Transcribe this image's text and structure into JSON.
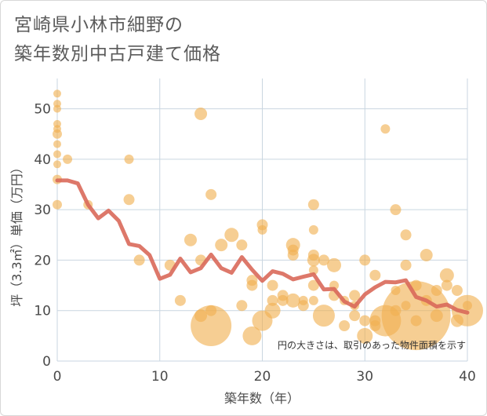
{
  "page": {
    "title_line1": "宮崎県小林市細野の",
    "title_line2": "築年数別中古戸建て価格"
  },
  "chart_data": {
    "type": "scatter",
    "title": "宮崎県小林市細野の築年数別中古戸建て価格",
    "xlabel": "築年数（年）",
    "ylabel": "坪（3.3㎡）単価（万円）",
    "xlim": [
      0,
      40
    ],
    "ylim": [
      0,
      56
    ],
    "xticks": [
      0,
      10,
      20,
      30,
      40
    ],
    "yticks": [
      0,
      10,
      20,
      30,
      40,
      50
    ],
    "grid": true,
    "annotation": "円の大きさは、取引のあった物件面積を示す",
    "colors": {
      "bubble": "#f0b050",
      "line": "#d9695a",
      "grid": "#c9d6e0"
    },
    "points": [
      {
        "x": 0,
        "y": 53,
        "s": 5
      },
      {
        "x": 0,
        "y": 51,
        "s": 5
      },
      {
        "x": 0,
        "y": 50,
        "s": 5
      },
      {
        "x": 0,
        "y": 47,
        "s": 5
      },
      {
        "x": 0,
        "y": 46,
        "s": 5
      },
      {
        "x": 0,
        "y": 45,
        "s": 6
      },
      {
        "x": 0,
        "y": 43,
        "s": 5
      },
      {
        "x": 0,
        "y": 41,
        "s": 5
      },
      {
        "x": 0,
        "y": 39,
        "s": 5
      },
      {
        "x": 0,
        "y": 36,
        "s": 6
      },
      {
        "x": 0,
        "y": 31,
        "s": 6
      },
      {
        "x": 1,
        "y": 40,
        "s": 6
      },
      {
        "x": 3,
        "y": 31,
        "s": 6
      },
      {
        "x": 7,
        "y": 40,
        "s": 6
      },
      {
        "x": 7,
        "y": 32,
        "s": 7
      },
      {
        "x": 8,
        "y": 20,
        "s": 7
      },
      {
        "x": 11,
        "y": 19,
        "s": 7
      },
      {
        "x": 12,
        "y": 12,
        "s": 7
      },
      {
        "x": 13,
        "y": 24,
        "s": 8
      },
      {
        "x": 14,
        "y": 49,
        "s": 8
      },
      {
        "x": 14,
        "y": 20,
        "s": 7
      },
      {
        "x": 14,
        "y": 9,
        "s": 8
      },
      {
        "x": 15,
        "y": 33,
        "s": 7
      },
      {
        "x": 15,
        "y": 10,
        "s": 7
      },
      {
        "x": 15,
        "y": 7,
        "s": 26
      },
      {
        "x": 16,
        "y": 23,
        "s": 8
      },
      {
        "x": 17,
        "y": 25,
        "s": 9
      },
      {
        "x": 18,
        "y": 23,
        "s": 7
      },
      {
        "x": 18,
        "y": 11,
        "s": 7
      },
      {
        "x": 19,
        "y": 16,
        "s": 7
      },
      {
        "x": 19,
        "y": 15,
        "s": 7
      },
      {
        "x": 19,
        "y": 5,
        "s": 12
      },
      {
        "x": 20,
        "y": 27,
        "s": 7
      },
      {
        "x": 20,
        "y": 26,
        "s": 6
      },
      {
        "x": 20,
        "y": 8,
        "s": 13
      },
      {
        "x": 21,
        "y": 15,
        "s": 7
      },
      {
        "x": 21,
        "y": 12,
        "s": 7
      },
      {
        "x": 21,
        "y": 10,
        "s": 10
      },
      {
        "x": 22,
        "y": 13,
        "s": 7
      },
      {
        "x": 22,
        "y": 12,
        "s": 7
      },
      {
        "x": 23,
        "y": 23,
        "s": 9
      },
      {
        "x": 23,
        "y": 21,
        "s": 7
      },
      {
        "x": 23,
        "y": 22,
        "s": 7
      },
      {
        "x": 23,
        "y": 12,
        "s": 9
      },
      {
        "x": 24,
        "y": 11,
        "s": 7
      },
      {
        "x": 24,
        "y": 12,
        "s": 6
      },
      {
        "x": 25,
        "y": 31,
        "s": 7
      },
      {
        "x": 25,
        "y": 26,
        "s": 6
      },
      {
        "x": 25,
        "y": 21,
        "s": 7
      },
      {
        "x": 25,
        "y": 20,
        "s": 8
      },
      {
        "x": 25,
        "y": 18,
        "s": 6
      },
      {
        "x": 25,
        "y": 15,
        "s": 7
      },
      {
        "x": 25,
        "y": 12,
        "s": 6
      },
      {
        "x": 26,
        "y": 9,
        "s": 14
      },
      {
        "x": 26,
        "y": 20,
        "s": 7
      },
      {
        "x": 27,
        "y": 19,
        "s": 9
      },
      {
        "x": 27,
        "y": 15,
        "s": 6
      },
      {
        "x": 27,
        "y": 13,
        "s": 7
      },
      {
        "x": 28,
        "y": 12,
        "s": 6
      },
      {
        "x": 28,
        "y": 7,
        "s": 7
      },
      {
        "x": 29,
        "y": 13,
        "s": 7
      },
      {
        "x": 29,
        "y": 11,
        "s": 6
      },
      {
        "x": 29,
        "y": 9,
        "s": 7
      },
      {
        "x": 30,
        "y": 20,
        "s": 7
      },
      {
        "x": 30,
        "y": 8,
        "s": 7
      },
      {
        "x": 30,
        "y": 5,
        "s": 10
      },
      {
        "x": 31,
        "y": 17,
        "s": 7
      },
      {
        "x": 31,
        "y": 8,
        "s": 7
      },
      {
        "x": 31,
        "y": 7,
        "s": 7
      },
      {
        "x": 32,
        "y": 46,
        "s": 6
      },
      {
        "x": 32,
        "y": 8,
        "s": 20
      },
      {
        "x": 33,
        "y": 30,
        "s": 7
      },
      {
        "x": 33,
        "y": 14,
        "s": 6
      },
      {
        "x": 33,
        "y": 10,
        "s": 7
      },
      {
        "x": 34,
        "y": 25,
        "s": 7
      },
      {
        "x": 34,
        "y": 19,
        "s": 7
      },
      {
        "x": 34,
        "y": 11,
        "s": 6
      },
      {
        "x": 35,
        "y": 9,
        "s": 44
      },
      {
        "x": 35,
        "y": 15,
        "s": 7
      },
      {
        "x": 35,
        "y": 8,
        "s": 7
      },
      {
        "x": 36,
        "y": 21,
        "s": 8
      },
      {
        "x": 36,
        "y": 12,
        "s": 7
      },
      {
        "x": 37,
        "y": 14,
        "s": 7
      },
      {
        "x": 37,
        "y": 9,
        "s": 8
      },
      {
        "x": 38,
        "y": 17,
        "s": 9
      },
      {
        "x": 38,
        "y": 15,
        "s": 7
      },
      {
        "x": 39,
        "y": 14,
        "s": 7
      },
      {
        "x": 39,
        "y": 8,
        "s": 8
      },
      {
        "x": 40,
        "y": 11,
        "s": 6
      },
      {
        "x": 40,
        "y": 10,
        "s": 20
      }
    ],
    "trend": [
      {
        "x": 0,
        "y": 35.8
      },
      {
        "x": 1,
        "y": 35.8
      },
      {
        "x": 2,
        "y": 35.2
      },
      {
        "x": 3,
        "y": 31
      },
      {
        "x": 4,
        "y": 28.3
      },
      {
        "x": 5,
        "y": 29.8
      },
      {
        "x": 6,
        "y": 27.8
      },
      {
        "x": 7,
        "y": 23.2
      },
      {
        "x": 8,
        "y": 22.8
      },
      {
        "x": 9,
        "y": 21
      },
      {
        "x": 10,
        "y": 16.3
      },
      {
        "x": 11,
        "y": 17.1
      },
      {
        "x": 12,
        "y": 20.3
      },
      {
        "x": 13,
        "y": 17.6
      },
      {
        "x": 14,
        "y": 18.4
      },
      {
        "x": 15,
        "y": 21.1
      },
      {
        "x": 16,
        "y": 18.4
      },
      {
        "x": 17,
        "y": 17.5
      },
      {
        "x": 18,
        "y": 20.6
      },
      {
        "x": 19,
        "y": 18.1
      },
      {
        "x": 20,
        "y": 15.9
      },
      {
        "x": 21,
        "y": 17.8
      },
      {
        "x": 22,
        "y": 17.3
      },
      {
        "x": 23,
        "y": 16.2
      },
      {
        "x": 24,
        "y": 16.7
      },
      {
        "x": 25,
        "y": 17.2
      },
      {
        "x": 26,
        "y": 14.2
      },
      {
        "x": 27,
        "y": 14.3
      },
      {
        "x": 28,
        "y": 11.8
      },
      {
        "x": 29,
        "y": 10.8
      },
      {
        "x": 30,
        "y": 13.2
      },
      {
        "x": 31,
        "y": 14.6
      },
      {
        "x": 32,
        "y": 15.7
      },
      {
        "x": 33,
        "y": 15.6
      },
      {
        "x": 34,
        "y": 16
      },
      {
        "x": 35,
        "y": 12.7
      },
      {
        "x": 36,
        "y": 12
      },
      {
        "x": 37,
        "y": 10.8
      },
      {
        "x": 38,
        "y": 11.2
      },
      {
        "x": 39,
        "y": 10.1
      },
      {
        "x": 40,
        "y": 9.6
      }
    ]
  }
}
